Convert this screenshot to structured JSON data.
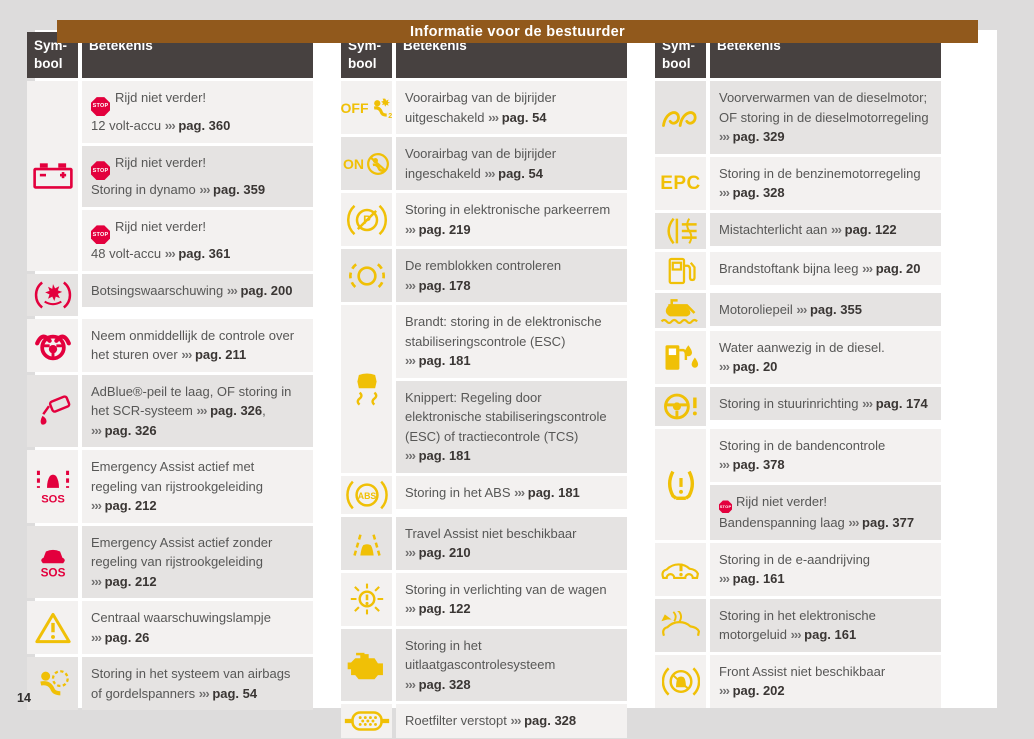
{
  "page": {
    "title": "Informatie voor de bestuurder",
    "page_number": "14"
  },
  "colors": {
    "accent_brown": "#91591c",
    "header_dark": "#474140",
    "warn_red": "#e3003d",
    "warn_yellow": "#f0c006",
    "row_light": "#f3f1f0",
    "row_dark": "#e5e3e2",
    "page_bg": "#ffffff",
    "canvas_bg": "#dddcdc"
  },
  "table_headers": {
    "symbol": "Sym-bool",
    "meaning": "Betekenis"
  },
  "stop_label": "STOP",
  "arrow_glyph": "›››",
  "tables": [
    {
      "rows": [
        {
          "icon": "battery-icon",
          "icon_color": "red",
          "symbol_shade": "light",
          "cells": [
            {
              "shade": "light",
              "segments": [
                {
                  "stop": "big"
                },
                {
                  "text": "Rijd niet verder!"
                },
                {
                  "br": true
                },
                {
                  "text": "12 volt-accu"
                },
                {
                  "ref": "pag. 360"
                }
              ]
            },
            {
              "shade": "dark",
              "segments": [
                {
                  "stop": "big"
                },
                {
                  "text": "Rijd niet verder!"
                },
                {
                  "br": true
                },
                {
                  "text": "Storing in dynamo"
                },
                {
                  "ref": "pag. 359"
                }
              ]
            },
            {
              "shade": "light",
              "segments": [
                {
                  "stop": "big"
                },
                {
                  "text": "Rijd niet verder!"
                },
                {
                  "br": true
                },
                {
                  "text": "48 volt-accu"
                },
                {
                  "ref": "pag. 361"
                }
              ]
            }
          ]
        },
        {
          "icon": "collision-warning-icon",
          "icon_color": "red",
          "symbol_shade": "dark",
          "cells": [
            {
              "shade": "dark",
              "segments": [
                {
                  "text": "Botsingswaarschuwing"
                },
                {
                  "ref": "pag. 200"
                }
              ]
            }
          ]
        },
        {
          "icon": "steering-takeover-icon",
          "icon_color": "red",
          "symbol_shade": "light",
          "cells": [
            {
              "shade": "light",
              "segments": [
                {
                  "text": "Neem onmiddellijk de controle over het sturen over"
                },
                {
                  "ref": "pag. 211"
                }
              ]
            }
          ]
        },
        {
          "icon": "adblue-icon",
          "icon_color": "red",
          "symbol_shade": "dark",
          "cells": [
            {
              "shade": "dark",
              "segments": [
                {
                  "text": "AdBlue®-peil te laag, OF storing in het SCR-systeem"
                },
                {
                  "ref": "pag. 326"
                },
                {
                  "text": ","
                },
                {
                  "ref": "pag. 326"
                }
              ]
            }
          ]
        },
        {
          "icon": "emergency-assist-lane-icon",
          "icon_color": "red",
          "symbol_shade": "light",
          "cells": [
            {
              "shade": "light",
              "segments": [
                {
                  "text": "Emergency Assist actief met regeling van rijstrookgeleiding"
                },
                {
                  "ref": "pag. 212"
                }
              ]
            }
          ]
        },
        {
          "icon": "emergency-assist-icon",
          "icon_color": "red",
          "symbol_shade": "dark",
          "cells": [
            {
              "shade": "dark",
              "segments": [
                {
                  "text": "Emergency Assist actief zonder regeling van rijstrookgeleiding"
                },
                {
                  "ref": "pag. 212"
                }
              ]
            }
          ]
        },
        {
          "icon": "warning-triangle-icon",
          "icon_color": "yellow",
          "symbol_shade": "light",
          "cells": [
            {
              "shade": "light",
              "segments": [
                {
                  "text": "Centraal waarschuwingslampje"
                },
                {
                  "ref": "pag. 26"
                }
              ]
            }
          ]
        },
        {
          "icon": "airbag-warning-icon",
          "icon_color": "yellow",
          "symbol_shade": "dark",
          "cells": [
            {
              "shade": "dark",
              "segments": [
                {
                  "text": "Storing in het systeem van airbags of gordelspanners"
                },
                {
                  "ref": "pag. 54"
                }
              ]
            }
          ]
        }
      ]
    },
    {
      "rows": [
        {
          "icon": "airbag-off-icon",
          "icon_color": "yellow",
          "symbol_shade": "light",
          "cells": [
            {
              "shade": "light",
              "segments": [
                {
                  "text": "Voorairbag van de bijrijder uitgeschakeld"
                },
                {
                  "ref": "pag. 54"
                }
              ]
            }
          ]
        },
        {
          "icon": "airbag-on-icon",
          "icon_color": "yellow",
          "symbol_shade": "dark",
          "cells": [
            {
              "shade": "dark",
              "segments": [
                {
                  "text": "Voorairbag van de bijrijder ingeschakeld"
                },
                {
                  "ref": "pag. 54"
                }
              ]
            }
          ]
        },
        {
          "icon": "parking-brake-fault-icon",
          "icon_color": "yellow",
          "symbol_shade": "light",
          "cells": [
            {
              "shade": "light",
              "segments": [
                {
                  "text": "Storing in elektronische parkeerrem"
                },
                {
                  "ref": "pag. 219"
                }
              ]
            }
          ]
        },
        {
          "icon": "brake-pads-icon",
          "icon_color": "yellow",
          "symbol_shade": "dark",
          "cells": [
            {
              "shade": "dark",
              "segments": [
                {
                  "text": "De remblokken controleren"
                },
                {
                  "ref": "pag. 178"
                }
              ]
            }
          ]
        },
        {
          "icon": "esc-icon",
          "icon_color": "yellow",
          "symbol_shade": "light",
          "cells": [
            {
              "shade": "light",
              "segments": [
                {
                  "text": "Brandt: storing in de elektronische stabiliseringscontrole (ESC)"
                },
                {
                  "ref": "pag. 181"
                }
              ]
            },
            {
              "shade": "dark",
              "segments": [
                {
                  "text": "Knippert: Regeling door elektronische stabiliseringscontrole (ESC) of tractiecontrole (TCS)"
                },
                {
                  "ref": "pag. 181"
                }
              ]
            }
          ]
        },
        {
          "icon": "abs-icon",
          "icon_color": "yellow",
          "symbol_shade": "light",
          "cells": [
            {
              "shade": "light",
              "segments": [
                {
                  "text": "Storing in het ABS"
                },
                {
                  "ref": "pag. 181"
                }
              ]
            }
          ]
        },
        {
          "icon": "travel-assist-icon",
          "icon_color": "yellow",
          "symbol_shade": "dark",
          "cells": [
            {
              "shade": "dark",
              "segments": [
                {
                  "text": "Travel Assist niet beschikbaar"
                },
                {
                  "ref": "pag. 210"
                }
              ]
            }
          ]
        },
        {
          "icon": "light-fault-icon",
          "icon_color": "yellow",
          "symbol_shade": "light",
          "cells": [
            {
              "shade": "light",
              "segments": [
                {
                  "text": "Storing in verlichting van de wagen"
                },
                {
                  "ref": "pag. 122"
                }
              ]
            }
          ]
        },
        {
          "icon": "engine-mil-icon",
          "icon_color": "yellow",
          "symbol_shade": "dark",
          "cells": [
            {
              "shade": "dark",
              "segments": [
                {
                  "text": "Storing in het uitlaatgascontrolesysteem"
                },
                {
                  "ref": "pag. 328"
                }
              ]
            }
          ]
        },
        {
          "icon": "dpf-icon",
          "icon_color": "yellow",
          "symbol_shade": "light",
          "cells": [
            {
              "shade": "light",
              "segments": [
                {
                  "text": "Roetfilter verstopt"
                },
                {
                  "ref": "pag. 328"
                }
              ]
            }
          ]
        }
      ]
    },
    {
      "rows": [
        {
          "icon": "glow-plug-icon",
          "icon_color": "yellow",
          "symbol_shade": "dark",
          "cells": [
            {
              "shade": "dark",
              "segments": [
                {
                  "text": "Voorverwarmen van de dieselmotor; OF storing in de dieselmotorregeling"
                },
                {
                  "ref": "pag. 329"
                }
              ]
            }
          ]
        },
        {
          "icon": "epc-icon",
          "icon_color": "yellow",
          "symbol_shade": "light",
          "cells": [
            {
              "shade": "light",
              "segments": [
                {
                  "text": "Storing in de benzinemotorregeling"
                },
                {
                  "ref": "pag. 328"
                }
              ]
            }
          ]
        },
        {
          "icon": "rear-fog-light-icon",
          "icon_color": "yellow",
          "symbol_shade": "dark",
          "cells": [
            {
              "shade": "dark",
              "segments": [
                {
                  "text": "Mistachterlicht aan"
                },
                {
                  "ref": "pag. 122"
                }
              ]
            }
          ]
        },
        {
          "icon": "fuel-pump-icon",
          "icon_color": "yellow",
          "symbol_shade": "light",
          "cells": [
            {
              "shade": "light",
              "segments": [
                {
                  "text": "Brandstoftank bijna leeg"
                },
                {
                  "ref": "pag. 20"
                }
              ]
            }
          ]
        },
        {
          "icon": "oil-level-icon",
          "icon_color": "yellow",
          "symbol_shade": "dark",
          "cells": [
            {
              "shade": "dark",
              "segments": [
                {
                  "text": "Motoroliepeil"
                },
                {
                  "ref": "pag. 355"
                }
              ]
            }
          ]
        },
        {
          "icon": "water-in-fuel-icon",
          "icon_color": "yellow",
          "symbol_shade": "light",
          "cells": [
            {
              "shade": "light",
              "segments": [
                {
                  "text": "Water aanwezig in de diesel."
                },
                {
                  "ref": "pag. 20"
                }
              ]
            }
          ]
        },
        {
          "icon": "steering-fault-icon",
          "icon_color": "yellow",
          "symbol_shade": "dark",
          "cells": [
            {
              "shade": "dark",
              "segments": [
                {
                  "text": "Storing in stuurinrichting"
                },
                {
                  "ref": "pag. 174"
                }
              ]
            }
          ]
        },
        {
          "icon": "tyre-pressure-icon",
          "icon_color": "yellow",
          "symbol_shade": "light",
          "cells": [
            {
              "shade": "light",
              "segments": [
                {
                  "text": "Storing in de bandencontrole"
                },
                {
                  "ref": "pag. 378"
                }
              ]
            },
            {
              "shade": "dark",
              "segments": [
                {
                  "stop": "small"
                },
                {
                  "text": "Rijd niet verder!"
                },
                {
                  "br": true
                },
                {
                  "text": "Bandenspanning laag"
                },
                {
                  "ref": "pag. 377"
                }
              ]
            }
          ]
        },
        {
          "icon": "e-drive-fault-icon",
          "icon_color": "yellow",
          "symbol_shade": "light",
          "cells": [
            {
              "shade": "light",
              "segments": [
                {
                  "text": "Storing in de e-aandrijving"
                },
                {
                  "ref": "pag. 161"
                }
              ]
            }
          ]
        },
        {
          "icon": "engine-sound-fault-icon",
          "icon_color": "yellow",
          "symbol_shade": "dark",
          "cells": [
            {
              "shade": "dark",
              "segments": [
                {
                  "text": "Storing in het elektronische motorgeluid"
                },
                {
                  "ref": "pag. 161"
                }
              ]
            }
          ]
        },
        {
          "icon": "front-assist-icon",
          "icon_color": "yellow",
          "symbol_shade": "light",
          "cells": [
            {
              "shade": "light",
              "segments": [
                {
                  "text": "Front Assist niet beschikbaar"
                },
                {
                  "ref": "pag. 202"
                }
              ]
            }
          ]
        }
      ]
    }
  ]
}
